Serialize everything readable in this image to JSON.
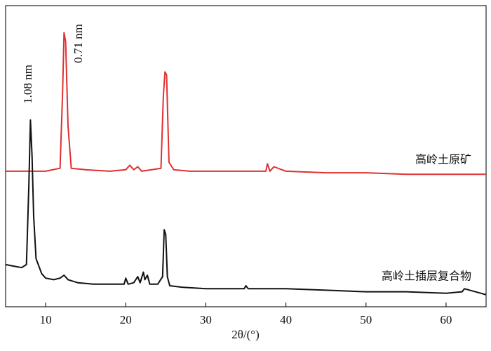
{
  "chart_data": {
    "type": "line",
    "xlabel": "2θ/(°)",
    "annotations": [
      "1.08 nm",
      "0.71 nm"
    ],
    "xlim": [
      5,
      65
    ],
    "xticks": [
      10,
      20,
      30,
      40,
      50,
      60
    ],
    "ylim": [
      0,
      100
    ],
    "series": [
      {
        "name": "高岭土原矿",
        "color": "#e03030",
        "x": [
          5,
          8,
          10,
          11.8,
          12.1,
          12.3,
          12.5,
          12.8,
          13.2,
          15,
          18,
          20,
          20.5,
          21,
          21.5,
          22,
          24.4,
          24.7,
          24.9,
          25.1,
          25.4,
          26,
          28,
          30,
          35,
          37.5,
          37.7,
          38,
          38.5,
          40,
          45,
          50,
          55,
          60,
          65
        ],
        "values": [
          45,
          45,
          45,
          46,
          70,
          91,
          88,
          60,
          46,
          45.5,
          45,
          45.5,
          47,
          45.5,
          46.5,
          45,
          46,
          70,
          78,
          77,
          48,
          45.5,
          45,
          45,
          45,
          45,
          47.5,
          45,
          46.5,
          45,
          44.5,
          44.5,
          44,
          44,
          44
        ]
      },
      {
        "name": "高岭土插层复合物",
        "color": "#111111",
        "x": [
          5,
          6,
          7,
          7.6,
          7.9,
          8.1,
          8.3,
          8.5,
          8.8,
          9.5,
          10,
          11,
          11.8,
          12.3,
          12.8,
          14,
          16,
          18,
          19.8,
          20,
          20.3,
          21,
          21.5,
          21.8,
          22.2,
          22.4,
          22.7,
          23,
          24,
          24.6,
          24.8,
          25,
          25.2,
          25.5,
          27,
          30,
          34.8,
          35,
          35.3,
          40,
          45,
          50,
          55,
          60,
          62,
          62.3,
          65
        ],
        "values": [
          14,
          13.5,
          13,
          14,
          40,
          62,
          50,
          30,
          16,
          11,
          9.5,
          9,
          9.5,
          10.5,
          9,
          8,
          7.5,
          7.5,
          7.5,
          9.5,
          7.5,
          8,
          10,
          8,
          11.5,
          9,
          10.5,
          7.5,
          7.5,
          10,
          25.6,
          24,
          10,
          7,
          6.5,
          6,
          6,
          7,
          6,
          6,
          5.5,
          5,
          5,
          4.5,
          5,
          6,
          4
        ]
      }
    ]
  }
}
